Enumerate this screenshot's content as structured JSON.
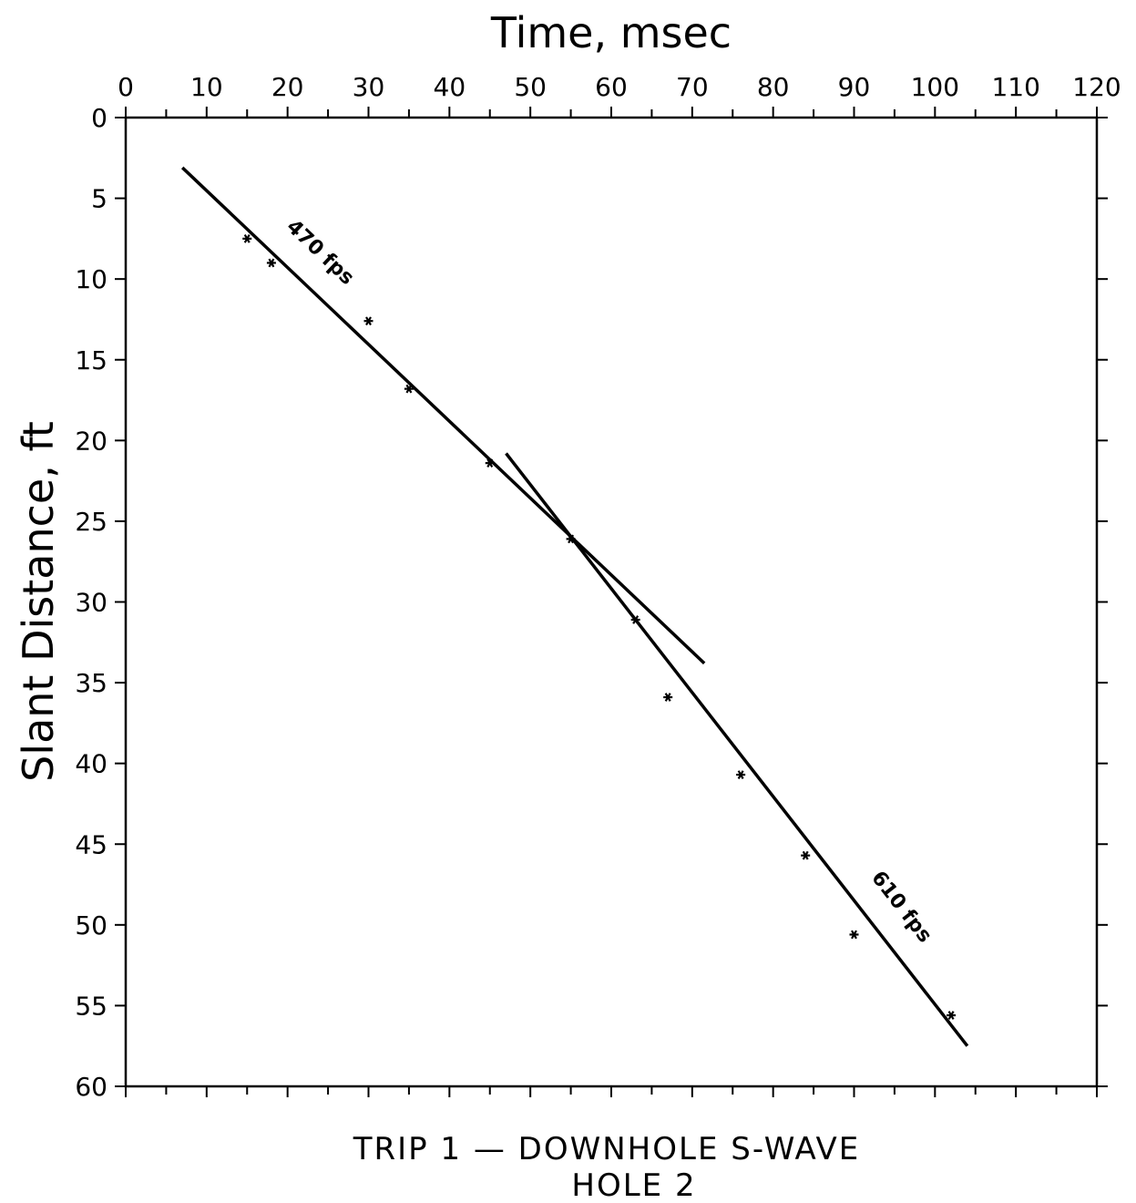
{
  "chart_data": {
    "type": "scatter",
    "title": "",
    "xlabel": "Time, msec",
    "ylabel": "Slant Distance, ft",
    "xlim": [
      0,
      120
    ],
    "ylim": [
      0,
      60
    ],
    "x_axis_position": "top",
    "y_axis_inverted": true,
    "xticks": [
      "0",
      "10",
      "20",
      "30",
      "40",
      "50",
      "60",
      "70",
      "80",
      "90",
      "100",
      "110",
      "120"
    ],
    "yticks": [
      "0",
      "5",
      "10",
      "15",
      "20",
      "25",
      "30",
      "35",
      "40",
      "45",
      "50",
      "55",
      "60"
    ],
    "grid": false,
    "series": [
      {
        "marker": "asterisk",
        "x": [
          15,
          18,
          30,
          35,
          45,
          55,
          63,
          67,
          76,
          84,
          90,
          102
        ],
        "y": [
          7.5,
          9.0,
          12.6,
          16.8,
          21.4,
          26.1,
          31.1,
          35.9,
          40.7,
          45.7,
          50.6,
          55.6
        ]
      }
    ],
    "fit_lines": [
      {
        "label": "470 fps",
        "x": [
          7,
          71.5
        ],
        "y": [
          3.1,
          33.8
        ]
      },
      {
        "label": "610 fps",
        "x": [
          47,
          104
        ],
        "y": [
          20.8,
          57.5
        ]
      }
    ]
  },
  "caption": {
    "line1": "TRIP 1 — DOWNHOLE S-WAVE",
    "line2": "HOLE 2"
  }
}
